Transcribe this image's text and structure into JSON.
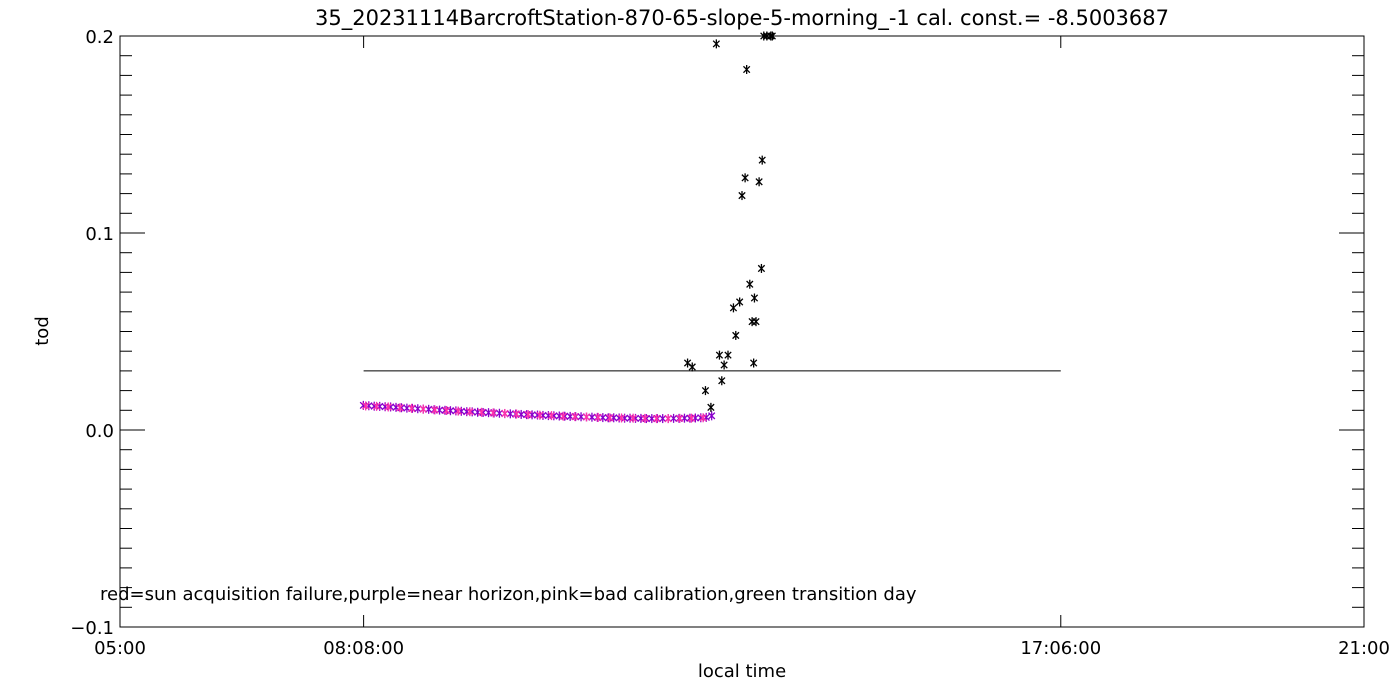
{
  "chart_data": {
    "type": "scatter",
    "title": "35_20231114BarcroftStation-870-65-slope-5-morning_-1 cal. const.= -8.5003687",
    "xlabel": "local time",
    "ylabel": "tod",
    "xlim": [
      5,
      21
    ],
    "ylim": [
      -0.1,
      0.2
    ],
    "x_ticks": [
      {
        "value": 5,
        "label": "05:00"
      },
      {
        "value": 8.1333,
        "label": "08:08:00"
      },
      {
        "value": 17.1,
        "label": "17:06:00"
      },
      {
        "value": 21,
        "label": "21:00"
      }
    ],
    "y_ticks": [
      {
        "value": -0.1,
        "label": "−0.1"
      },
      {
        "value": 0.0,
        "label": "0.0"
      },
      {
        "value": 0.1,
        "label": "0.1"
      },
      {
        "value": 0.2,
        "label": "0.2"
      }
    ],
    "annotation": "red=sun acquisition failure,purple=near horizon,pink=bad calibration,green transition day",
    "threshold_line": {
      "y": 0.03,
      "x_start": 8.1333,
      "x_end": 17.1
    },
    "colors": {
      "normal": "#000000",
      "near_horizon": "#8800cc",
      "bad_calibration": "#ff33aa",
      "axes": "#000000"
    },
    "series": [
      {
        "category": "near_horizon",
        "x": [
          8.13,
          8.2,
          8.27,
          8.34,
          8.41,
          8.48,
          8.55,
          8.62,
          8.69,
          8.76,
          8.83,
          8.9,
          8.97,
          9.04,
          9.11,
          9.18,
          9.25,
          9.32,
          9.39,
          9.46,
          9.53,
          9.6,
          9.67,
          9.74,
          9.81,
          9.88,
          9.95,
          10.02,
          10.09,
          10.16,
          10.23,
          10.3,
          10.37,
          10.44,
          10.51,
          10.58,
          10.65,
          10.72,
          10.79,
          10.86,
          10.93,
          11.0,
          11.07,
          11.14,
          11.21,
          11.28,
          11.35,
          11.42,
          11.49,
          11.56,
          11.63,
          11.7,
          11.77,
          11.84,
          11.91,
          11.98,
          12.05,
          12.12,
          12.19,
          12.26,
          12.33,
          12.4,
          12.47,
          12.54,
          12.61
        ],
        "values": [
          0.0125,
          0.0123,
          0.0121,
          0.012,
          0.0118,
          0.0117,
          0.0115,
          0.0113,
          0.0111,
          0.011,
          0.0108,
          0.0106,
          0.0105,
          0.0103,
          0.0101,
          0.01,
          0.0098,
          0.0097,
          0.0095,
          0.0093,
          0.0092,
          0.009,
          0.0089,
          0.0088,
          0.0086,
          0.0085,
          0.0083,
          0.0082,
          0.0081,
          0.0079,
          0.0078,
          0.0077,
          0.0076,
          0.0074,
          0.0073,
          0.0072,
          0.0071,
          0.007,
          0.0069,
          0.0068,
          0.0067,
          0.0066,
          0.0065,
          0.0064,
          0.0063,
          0.0062,
          0.0062,
          0.0061,
          0.006,
          0.006,
          0.0059,
          0.0059,
          0.0058,
          0.0058,
          0.0058,
          0.0058,
          0.0058,
          0.0059,
          0.0059,
          0.006,
          0.006,
          0.0061,
          0.0062,
          0.0064,
          0.0072
        ]
      },
      {
        "category": "bad_calibration",
        "x": [
          8.16,
          8.3,
          8.45,
          8.6,
          8.75,
          8.9,
          9.05,
          9.2,
          9.35,
          9.5,
          9.65,
          9.8,
          9.95,
          10.1,
          10.25,
          10.4,
          10.55,
          10.7,
          10.85,
          11.0,
          11.15,
          11.3,
          11.45,
          11.6,
          11.75,
          11.9,
          12.05,
          12.2,
          12.35,
          12.5
        ],
        "values": [
          0.0122,
          0.012,
          0.0117,
          0.0113,
          0.011,
          0.0106,
          0.0102,
          0.0099,
          0.0096,
          0.0093,
          0.009,
          0.0087,
          0.0084,
          0.0081,
          0.0078,
          0.0075,
          0.0073,
          0.007,
          0.0068,
          0.0066,
          0.0064,
          0.0062,
          0.0061,
          0.006,
          0.0059,
          0.0058,
          0.0058,
          0.0059,
          0.006,
          0.0062
        ]
      },
      {
        "category": "normal",
        "x": [
          12.3,
          12.36,
          12.53,
          12.6,
          12.67,
          12.71,
          12.74,
          12.77,
          12.82,
          12.89,
          12.92,
          12.97,
          13.0,
          13.04,
          13.06,
          13.1,
          13.13,
          13.15,
          13.16,
          13.18,
          13.22,
          13.25,
          13.26,
          13.28,
          13.32,
          13.37,
          13.39
        ],
        "values": [
          0.034,
          0.032,
          0.02,
          0.0115,
          0.196,
          0.038,
          0.025,
          0.033,
          0.038,
          0.062,
          0.048,
          0.065,
          0.119,
          0.128,
          0.183,
          0.074,
          0.055,
          0.034,
          0.067,
          0.055,
          0.126,
          0.082,
          0.137,
          0.2,
          0.2,
          0.2,
          0.2
        ]
      }
    ]
  }
}
